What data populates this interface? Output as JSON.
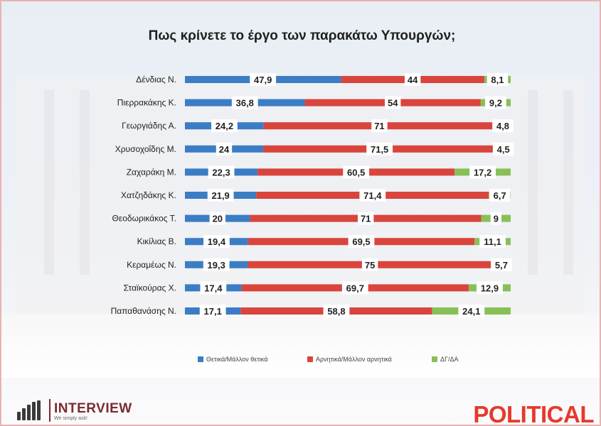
{
  "chart_data": {
    "type": "bar",
    "stacked": true,
    "orientation": "horizontal",
    "title": "Πως κρίνετε το έργο των παρακάτω Υπουργών;",
    "categories": [
      "Δένδιας Ν.",
      "Πιερρακάκης Κ.",
      "Γεωργιάδης Α.",
      "Χρυσοχοΐδης Μ.",
      "Ζαχαράκη Μ.",
      "Χατζηδάκης Κ.",
      "Θεοδωρικάκος Τ.",
      "Κικίλιας Β.",
      "Κεραμέως Ν.",
      "Σταϊκούρας Χ.",
      "Παπαθανάσης Ν."
    ],
    "series": [
      {
        "name": "Θετικά/Μάλλον θετικά",
        "color": "#3b7dc4",
        "values": [
          47.9,
          36.8,
          24.2,
          24,
          22.3,
          21.9,
          20,
          19.4,
          19.3,
          17.4,
          17.1
        ]
      },
      {
        "name": "Αρνητικά/Μάλλον αρνητικά",
        "color": "#d9453c",
        "values": [
          44,
          54,
          71,
          71.5,
          60.5,
          71.4,
          71,
          69.5,
          75,
          69.7,
          58.8
        ]
      },
      {
        "name": "ΔΓ/ΔΑ",
        "color": "#88c057",
        "values": [
          8.1,
          9.2,
          4.8,
          4.5,
          17.2,
          6.7,
          9,
          11.1,
          5.7,
          12.9,
          24.1
        ]
      }
    ],
    "labels": [
      [
        "47,9",
        "44",
        "8,1"
      ],
      [
        "36,8",
        "54",
        "9,2"
      ],
      [
        "24,2",
        "71",
        "4,8"
      ],
      [
        "24",
        "71,5",
        "4,5"
      ],
      [
        "22,3",
        "60,5",
        "17,2"
      ],
      [
        "21,9",
        "71,4",
        "6,7"
      ],
      [
        "20",
        "71",
        "9"
      ],
      [
        "19,4",
        "69,5",
        "11,1"
      ],
      [
        "19,3",
        "75",
        "5,7"
      ],
      [
        "17,4",
        "69,7",
        "12,9"
      ],
      [
        "17,1",
        "58,8",
        "24,1"
      ]
    ],
    "xlim": [
      0,
      100
    ],
    "legend": "bottom"
  },
  "legend": {
    "positive": "Θετικά/Μάλλον θετικά",
    "negative": "Αρνητικά/Μάλλον αρνητικά",
    "undecided": "ΔΓ/ΔΑ"
  },
  "brand": {
    "left_logo": "INTERVIEW",
    "left_tagline": "We simply ask!",
    "right_logo": "POLITICAL"
  }
}
